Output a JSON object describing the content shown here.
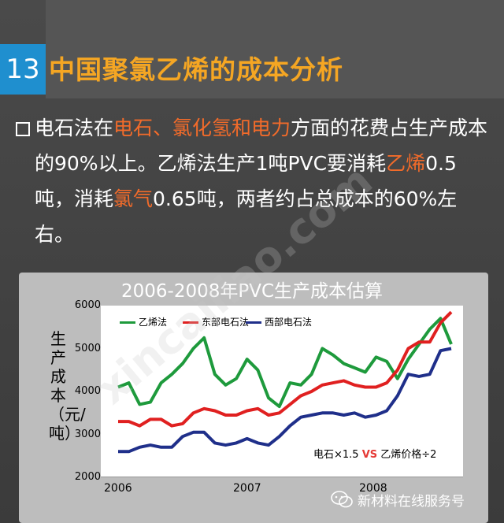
{
  "header": {
    "number": "13",
    "title": "中国聚氯乙烯的成本分析"
  },
  "bullet": {
    "parts": [
      {
        "text": "电石法在",
        "highlight": false
      },
      {
        "text": "电石、氯化氢和电力",
        "highlight": true
      },
      {
        "text": "方面的花费占生产成本的90%以上。乙烯法生产1吨PVC要消耗",
        "highlight": false
      },
      {
        "text": "乙烯",
        "highlight": true
      },
      {
        "text": "0.5吨，消耗",
        "highlight": false
      },
      {
        "text": "氯气",
        "highlight": true
      },
      {
        "text": "0.65吨，两者约占总成本的60%左右。",
        "highlight": false
      }
    ]
  },
  "colors": {
    "accent_orange": "#f26b2a",
    "title_orange": "#f5a623",
    "badge_blue": "#1f8fcf"
  },
  "chart_data": {
    "type": "line",
    "title": "2006-2008年PVC生产成本估算",
    "ylabel": "生产成本（元/吨）",
    "ylim": [
      2000,
      6000
    ],
    "yticks": [
      "6000",
      "5000",
      "4000",
      "3000",
      "2000"
    ],
    "xticks": [
      "2006",
      "2007",
      "2008"
    ],
    "annotation": {
      "left": "电石×1.5 ",
      "vs": "VS",
      "right": " 乙烯价格÷2"
    },
    "legend_position": "top-left",
    "series": [
      {
        "name": "乙烯法",
        "color": "#1e9a3c",
        "values": [
          4100,
          4200,
          3700,
          3750,
          4200,
          4400,
          4650,
          5000,
          5250,
          4400,
          4150,
          4300,
          4750,
          4500,
          3850,
          3650,
          4200,
          4150,
          4400,
          5000,
          4850,
          4650,
          4550,
          4450,
          4800,
          4700,
          4300,
          4750,
          5100,
          5450,
          5700,
          5100
        ]
      },
      {
        "name": "东部电石法",
        "color": "#e02020",
        "values": [
          3300,
          3300,
          3200,
          3350,
          3350,
          3200,
          3250,
          3500,
          3600,
          3550,
          3450,
          3450,
          3550,
          3600,
          3450,
          3500,
          3700,
          3900,
          4000,
          4150,
          4200,
          4250,
          4150,
          4100,
          4100,
          4200,
          4500,
          5000,
          5150,
          5150,
          5600,
          5850
        ]
      },
      {
        "name": "西部电石法",
        "color": "#1f2f8a",
        "values": [
          2600,
          2600,
          2700,
          2750,
          2700,
          2700,
          2950,
          3050,
          3050,
          2800,
          2750,
          2800,
          2900,
          2800,
          2750,
          2950,
          3200,
          3400,
          3450,
          3500,
          3500,
          3450,
          3500,
          3400,
          3450,
          3550,
          3900,
          4400,
          4350,
          4400,
          4950,
          5000
        ]
      }
    ]
  },
  "footer": {
    "account": "新材料在线服务号"
  },
  "watermark": "xincailiao.com"
}
